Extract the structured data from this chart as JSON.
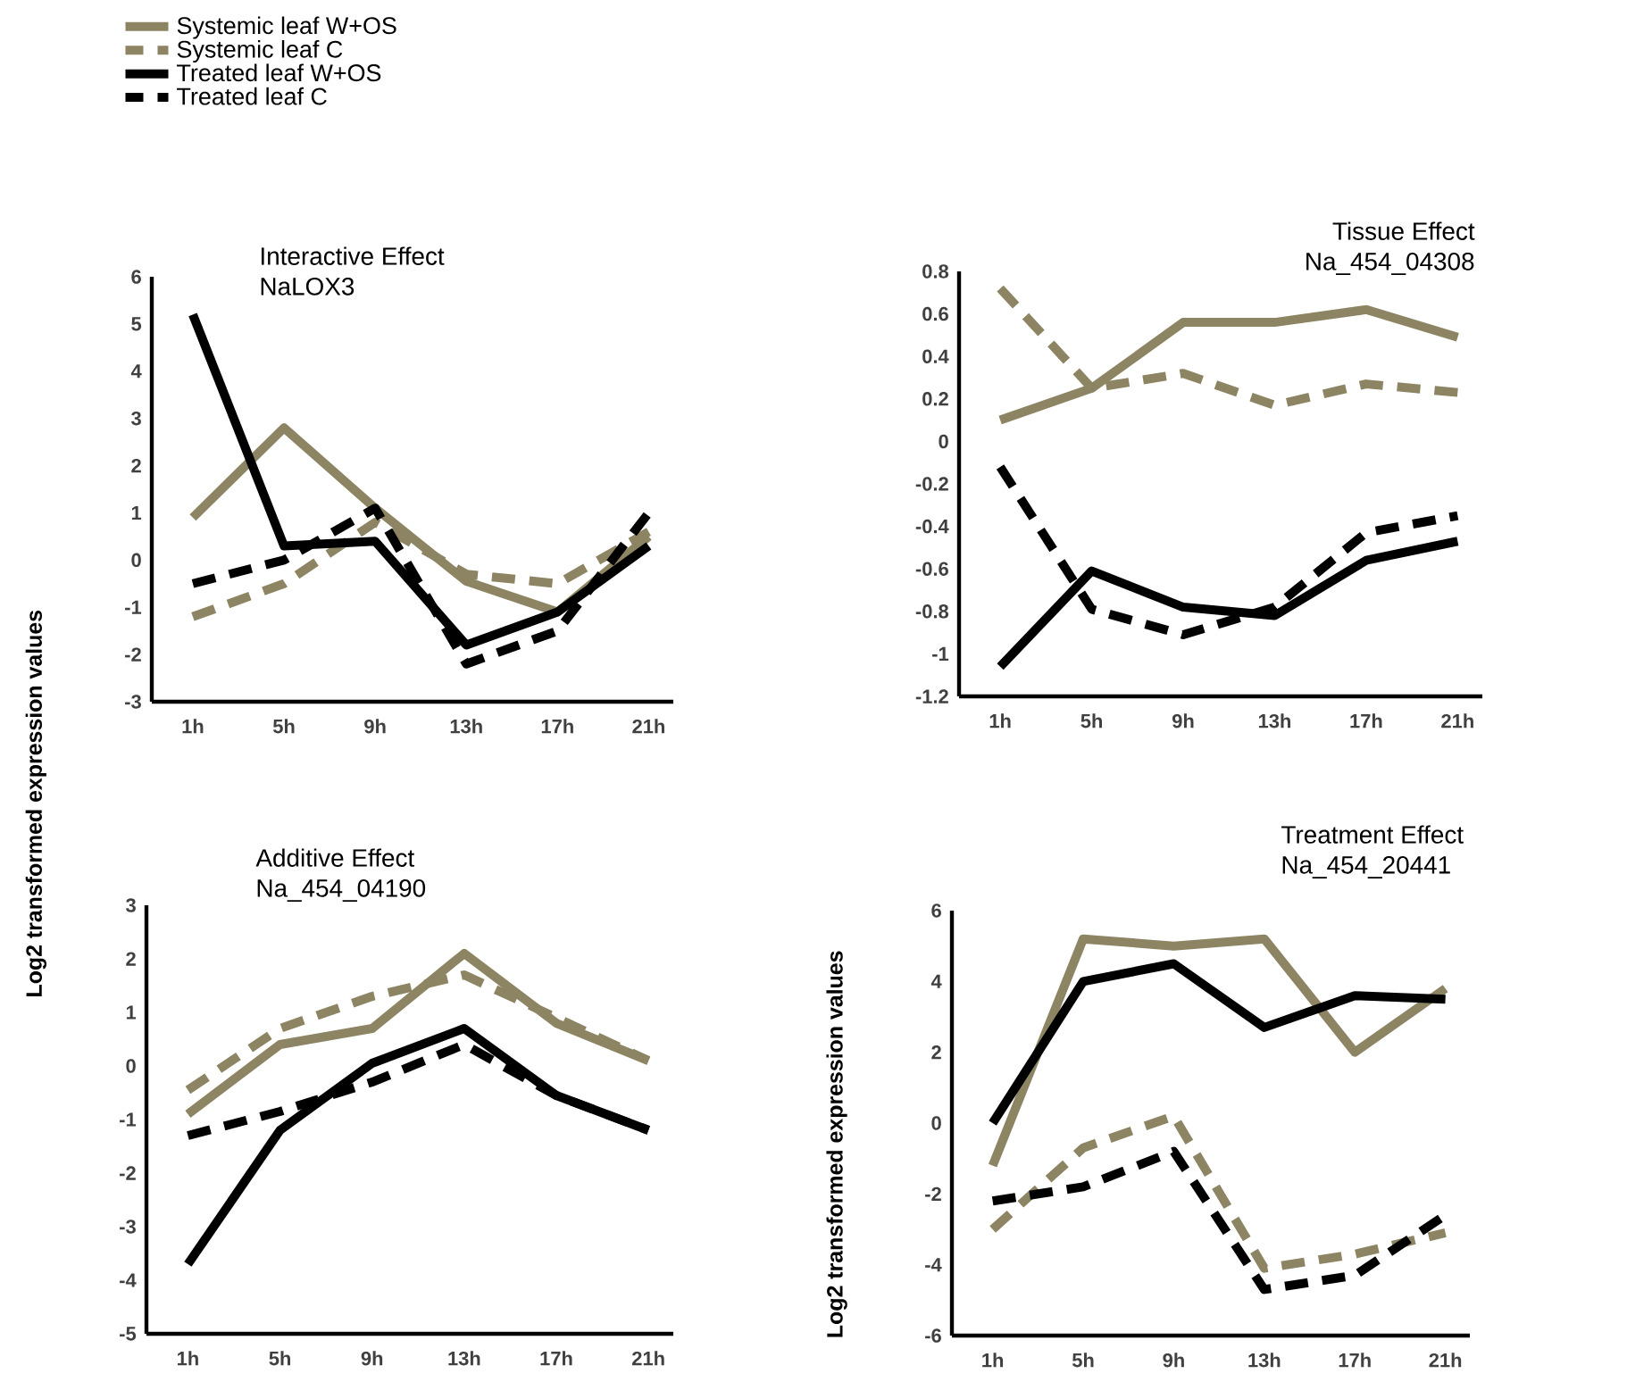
{
  "chart_data": [
    {
      "type": "line",
      "title": "Interactive Effect",
      "subtitle": "NaLOX3",
      "ylabel": "Log2 transformed expression values",
      "legend": "top left",
      "categories": [
        "1h",
        "5h",
        "9h",
        "13h",
        "17h",
        "21h"
      ],
      "ylim": [
        -3,
        6
      ],
      "yticks": [
        -3,
        -2,
        -1,
        0,
        1,
        2,
        3,
        4,
        5,
        6
      ],
      "grid": false,
      "series": [
        {
          "name": "Systemic leaf W+OS",
          "color": "#8c8462",
          "line_style": "solid",
          "values": [
            0.9,
            2.8,
            1.1,
            -0.45,
            -1.1,
            0.5
          ]
        },
        {
          "name": "Systemic leaf C",
          "color": "#8c8462",
          "line_style": "dashed",
          "values": [
            -1.2,
            -0.5,
            0.8,
            -0.3,
            -0.5,
            0.6
          ]
        },
        {
          "name": "Treated leaf W+OS",
          "color": "#000000",
          "line_style": "solid",
          "values": [
            5.2,
            0.3,
            0.4,
            -1.8,
            -1.1,
            0.3
          ]
        },
        {
          "name": "Treated leaf C",
          "color": "#000000",
          "line_style": "dashed",
          "values": [
            -0.5,
            0.0,
            1.1,
            -2.2,
            -1.5,
            1.0
          ]
        }
      ]
    },
    {
      "type": "line",
      "title": "Tissue Effect",
      "subtitle": "Na_454_04308",
      "categories": [
        "1h",
        "5h",
        "9h",
        "13h",
        "17h",
        "21h"
      ],
      "ylim": [
        -1.2,
        0.8
      ],
      "yticks": [
        -1.2,
        -1,
        -0.8,
        -0.6,
        -0.4,
        -0.2,
        0,
        0.2,
        0.4,
        0.6,
        0.8
      ],
      "grid": false,
      "series": [
        {
          "color": "#8c8462",
          "line_style": "solid",
          "values": [
            0.1,
            0.25,
            0.56,
            0.56,
            0.62,
            0.49
          ]
        },
        {
          "color": "#8c8462",
          "line_style": "dashed",
          "values": [
            0.72,
            0.25,
            0.32,
            0.17,
            0.27,
            0.23
          ]
        },
        {
          "color": "#000000",
          "line_style": "solid",
          "values": [
            -1.06,
            -0.61,
            -0.78,
            -0.82,
            -0.56,
            -0.47
          ]
        },
        {
          "color": "#000000",
          "line_style": "dashed",
          "values": [
            -0.12,
            -0.79,
            -0.91,
            -0.78,
            -0.43,
            -0.35
          ]
        }
      ]
    },
    {
      "type": "line",
      "title": "Additive Effect",
      "subtitle": "Na_454_04190",
      "categories": [
        "1h",
        "5h",
        "9h",
        "13h",
        "17h",
        "21h"
      ],
      "ylim": [
        -5,
        3
      ],
      "yticks": [
        -5,
        -4,
        -3,
        -2,
        -1,
        0,
        1,
        2,
        3
      ],
      "grid": false,
      "series": [
        {
          "color": "#8c8462",
          "line_style": "solid",
          "values": [
            -0.9,
            0.4,
            0.7,
            2.1,
            0.8,
            0.1
          ]
        },
        {
          "color": "#8c8462",
          "line_style": "dashed",
          "values": [
            -0.45,
            0.7,
            1.3,
            1.7,
            0.9,
            0.1
          ]
        },
        {
          "color": "#000000",
          "line_style": "solid",
          "values": [
            -3.7,
            -1.2,
            0.05,
            0.7,
            -0.55,
            -1.2
          ]
        },
        {
          "color": "#000000",
          "line_style": "dashed",
          "values": [
            -1.3,
            -0.85,
            -0.3,
            0.4,
            -0.55,
            -1.2
          ]
        }
      ]
    },
    {
      "type": "line",
      "title": "Treatment Effect",
      "subtitle": "Na_454_20441",
      "ylabel": "Log2 transformed expression values",
      "categories": [
        "1h",
        "5h",
        "9h",
        "13h",
        "17h",
        "21h"
      ],
      "ylim": [
        -6,
        6
      ],
      "yticks": [
        -6,
        -4,
        -2,
        0,
        2,
        4,
        6
      ],
      "grid": false,
      "series": [
        {
          "color": "#8c8462",
          "line_style": "solid",
          "values": [
            -1.2,
            5.2,
            5.0,
            5.2,
            2.0,
            3.8
          ]
        },
        {
          "color": "#8c8462",
          "line_style": "dashed",
          "values": [
            -3.0,
            -0.7,
            0.2,
            -4.1,
            -3.7,
            -3.1
          ]
        },
        {
          "color": "#000000",
          "line_style": "solid",
          "values": [
            0.0,
            4.0,
            4.5,
            2.7,
            3.6,
            3.5
          ]
        },
        {
          "color": "#000000",
          "line_style": "dashed",
          "values": [
            -2.2,
            -1.8,
            -0.8,
            -4.7,
            -4.3,
            -2.6
          ]
        }
      ]
    }
  ]
}
